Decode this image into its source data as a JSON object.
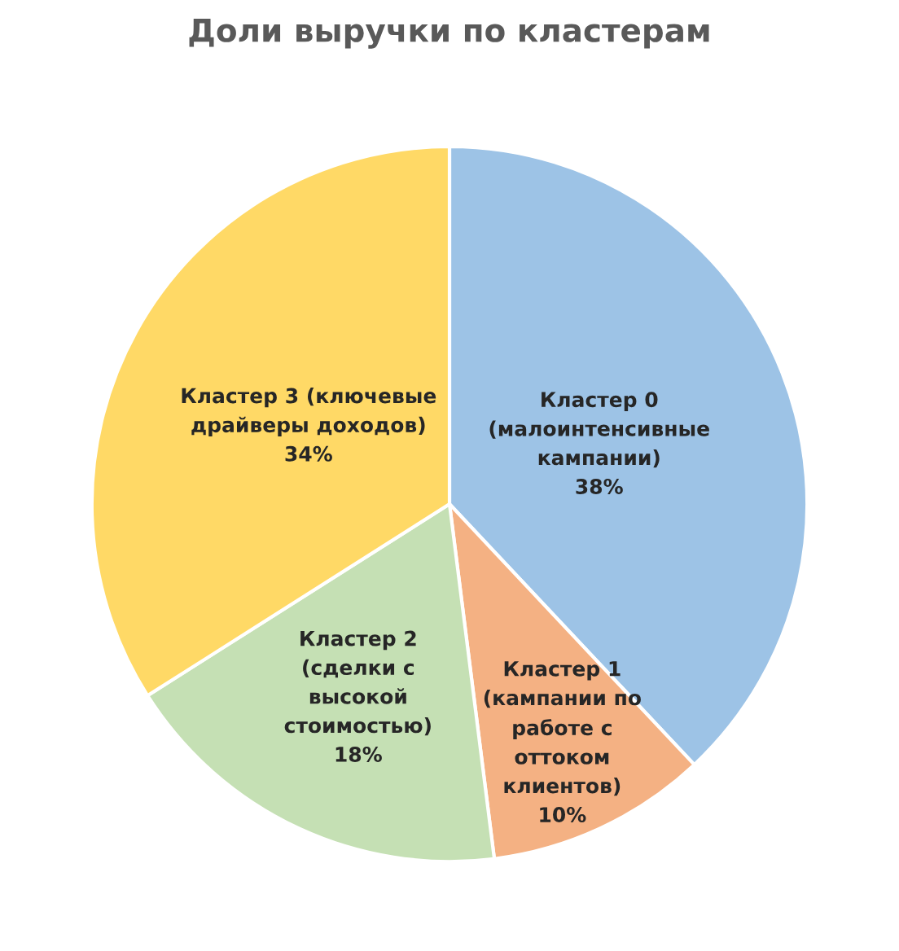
{
  "chart_data": {
    "type": "pie",
    "title": "Доли выручки по кластерам",
    "categories": [
      "Кластер 0\n(малоинтенсивные\nкампании)",
      "Кластер 1\n(кампании по\nработе с\nоттоком\nклиентов)",
      "Кластер 2\n(сделки с\nвысокой\nстоимостью)",
      "Кластер 3 (ключевые\nдрайверы доходов)"
    ],
    "values": [
      38,
      10,
      18,
      34
    ],
    "value_labels": [
      "38%",
      "10%",
      "18%",
      "34%"
    ],
    "colors": [
      "#9dc3e6",
      "#f4b183",
      "#c5e0b4",
      "#ffd966"
    ],
    "legend": false
  }
}
